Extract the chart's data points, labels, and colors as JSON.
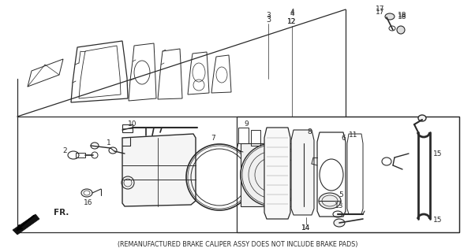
{
  "footer_text": "(REMANUFACTURED BRAKE CALIPER ASSY DOES NOT INCLUDE BRAKE PADS)",
  "bg_color": "#ffffff",
  "line_color": "#2a2a2a",
  "fig_width": 6.02,
  "fig_height": 3.2,
  "dpi": 100
}
